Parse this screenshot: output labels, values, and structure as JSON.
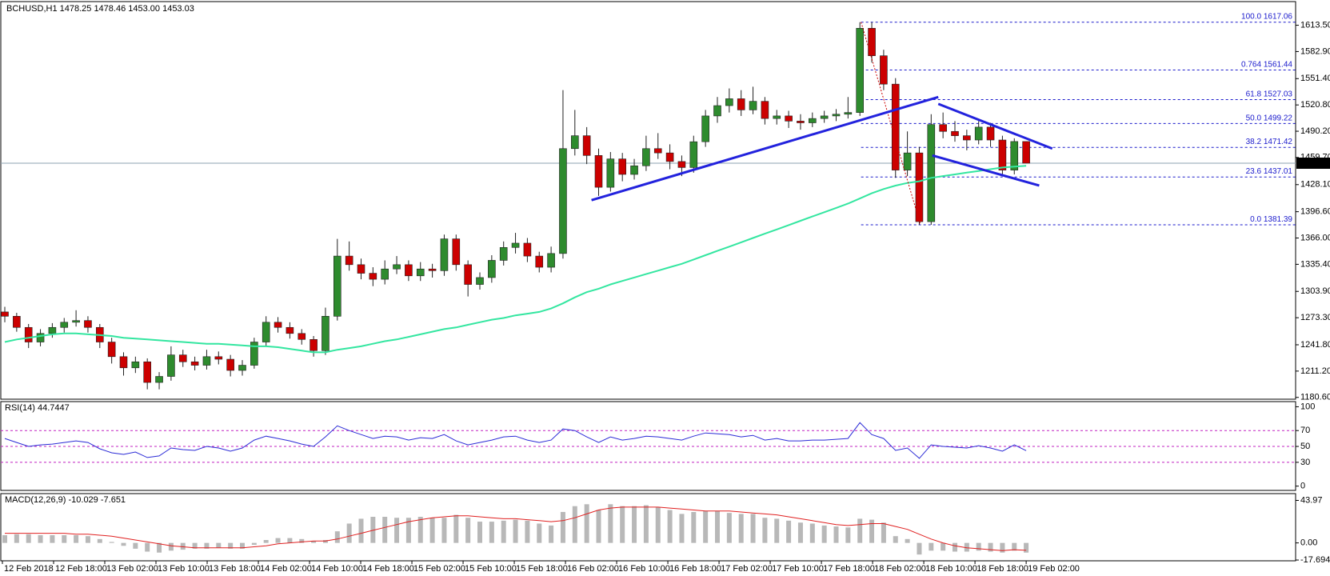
{
  "chart_data": {
    "type": "candlestick",
    "header": "BCHUSD,H1  1478.25 1478.46 1453.00 1453.03",
    "bull_color": "#2e8b2e",
    "bear_color": "#cc0000",
    "ma_color": "#33e6a0",
    "trend_color": "#2222dd",
    "fib_color": "#1a1acc",
    "ylim": [
      1178.5,
      1641
    ],
    "yticks": [
      {
        "value": 1613.5,
        "label": "1613.50"
      },
      {
        "value": 1582.9,
        "label": "1582.90"
      },
      {
        "value": 1551.4,
        "label": "1551.40"
      },
      {
        "value": 1520.8,
        "label": "1520.80"
      },
      {
        "value": 1490.2,
        "label": "1490.20"
      },
      {
        "value": 1459.7,
        "label": "1459.70"
      },
      {
        "value": 1428.1,
        "label": "1428.10"
      },
      {
        "value": 1396.6,
        "label": "1396.60"
      },
      {
        "value": 1366,
        "label": "1366.00"
      },
      {
        "value": 1335.4,
        "label": "1335.40"
      },
      {
        "value": 1303.9,
        "label": "1303.90"
      },
      {
        "value": 1273.3,
        "label": "1273.30"
      },
      {
        "value": 1241.8,
        "label": "1241.80"
      },
      {
        "value": 1211.2,
        "label": "1211.20"
      },
      {
        "value": 1180.6,
        "label": "1180.60"
      }
    ],
    "time_labels": [
      "12 Feb 2018",
      "12 Feb 18:00",
      "13 Feb 02:00",
      "13 Feb 10:00",
      "13 Feb 18:00",
      "14 Feb 02:00",
      "14 Feb 10:00",
      "14 Feb 18:00",
      "15 Feb 02:00",
      "15 Feb 10:00",
      "15 Feb 18:00",
      "16 Feb 02:00",
      "16 Feb 10:00",
      "16 Feb 18:00",
      "17 Feb 02:00",
      "17 Feb 10:00",
      "17 Feb 18:00",
      "18 Feb 02:00",
      "18 Feb 10:00",
      "18 Feb 18:00",
      "19 Feb 02:00"
    ],
    "candles": [
      [
        1280,
        1286,
        1268,
        1275
      ],
      [
        1275,
        1279,
        1257,
        1262
      ],
      [
        1262,
        1266,
        1238,
        1245
      ],
      [
        1245,
        1260,
        1240,
        1255
      ],
      [
        1255,
        1267,
        1250,
        1262
      ],
      [
        1262,
        1273,
        1256,
        1268
      ],
      [
        1268,
        1282,
        1263,
        1270
      ],
      [
        1270,
        1275,
        1256,
        1262
      ],
      [
        1262,
        1266,
        1238,
        1245
      ],
      [
        1245,
        1250,
        1220,
        1228
      ],
      [
        1228,
        1233,
        1206,
        1215
      ],
      [
        1215,
        1228,
        1209,
        1222
      ],
      [
        1222,
        1226,
        1190,
        1198
      ],
      [
        1198,
        1210,
        1190,
        1205
      ],
      [
        1205,
        1240,
        1200,
        1230
      ],
      [
        1230,
        1236,
        1216,
        1222
      ],
      [
        1222,
        1228,
        1212,
        1218
      ],
      [
        1218,
        1236,
        1213,
        1228
      ],
      [
        1228,
        1234,
        1219,
        1225
      ],
      [
        1225,
        1230,
        1205,
        1212
      ],
      [
        1212,
        1224,
        1206,
        1218
      ],
      [
        1218,
        1250,
        1214,
        1245
      ],
      [
        1245,
        1275,
        1240,
        1268
      ],
      [
        1268,
        1274,
        1256,
        1262
      ],
      [
        1262,
        1268,
        1249,
        1255
      ],
      [
        1255,
        1260,
        1242,
        1248
      ],
      [
        1248,
        1252,
        1228,
        1235
      ],
      [
        1235,
        1285,
        1230,
        1275
      ],
      [
        1275,
        1365,
        1270,
        1345
      ],
      [
        1345,
        1362,
        1328,
        1335
      ],
      [
        1335,
        1342,
        1318,
        1325
      ],
      [
        1325,
        1332,
        1310,
        1318
      ],
      [
        1318,
        1340,
        1312,
        1330
      ],
      [
        1330,
        1345,
        1324,
        1335
      ],
      [
        1335,
        1340,
        1316,
        1322
      ],
      [
        1322,
        1338,
        1316,
        1330
      ],
      [
        1330,
        1336,
        1320,
        1328
      ],
      [
        1328,
        1370,
        1322,
        1365
      ],
      [
        1365,
        1370,
        1328,
        1335
      ],
      [
        1335,
        1340,
        1298,
        1312
      ],
      [
        1312,
        1326,
        1306,
        1320
      ],
      [
        1320,
        1346,
        1314,
        1340
      ],
      [
        1340,
        1362,
        1334,
        1355
      ],
      [
        1355,
        1372,
        1348,
        1360
      ],
      [
        1360,
        1366,
        1338,
        1345
      ],
      [
        1345,
        1350,
        1326,
        1332
      ],
      [
        1332,
        1356,
        1326,
        1348
      ],
      [
        1348,
        1538,
        1342,
        1470
      ],
      [
        1470,
        1515,
        1462,
        1485
      ],
      [
        1485,
        1495,
        1452,
        1462
      ],
      [
        1462,
        1470,
        1415,
        1425
      ],
      [
        1425,
        1466,
        1420,
        1458
      ],
      [
        1458,
        1465,
        1432,
        1440
      ],
      [
        1440,
        1458,
        1434,
        1450
      ],
      [
        1450,
        1485,
        1444,
        1470
      ],
      [
        1470,
        1488,
        1458,
        1465
      ],
      [
        1465,
        1475,
        1446,
        1455
      ],
      [
        1455,
        1462,
        1438,
        1448
      ],
      [
        1448,
        1485,
        1442,
        1478
      ],
      [
        1478,
        1515,
        1472,
        1508
      ],
      [
        1508,
        1530,
        1500,
        1520
      ],
      [
        1520,
        1540,
        1512,
        1528
      ],
      [
        1528,
        1538,
        1508,
        1515
      ],
      [
        1515,
        1542,
        1510,
        1525
      ],
      [
        1525,
        1530,
        1498,
        1505
      ],
      [
        1505,
        1515,
        1498,
        1508
      ],
      [
        1508,
        1514,
        1494,
        1502
      ],
      [
        1502,
        1510,
        1492,
        1500
      ],
      [
        1500,
        1512,
        1495,
        1505
      ],
      [
        1505,
        1514,
        1500,
        1508
      ],
      [
        1508,
        1516,
        1502,
        1510
      ],
      [
        1510,
        1530,
        1505,
        1512
      ],
      [
        1512,
        1617.06,
        1508,
        1610
      ],
      [
        1610,
        1617,
        1570,
        1578
      ],
      [
        1578,
        1585,
        1538,
        1545
      ],
      [
        1545,
        1552,
        1436,
        1445
      ],
      [
        1445,
        1490,
        1438,
        1465
      ],
      [
        1465,
        1472,
        1381.39,
        1385
      ],
      [
        1385,
        1510,
        1381.39,
        1498
      ],
      [
        1498,
        1512,
        1482,
        1490
      ],
      [
        1490,
        1502,
        1478,
        1485
      ],
      [
        1485,
        1492,
        1468,
        1480
      ],
      [
        1480,
        1502,
        1475,
        1495
      ],
      [
        1495,
        1500,
        1472,
        1480
      ],
      [
        1480,
        1485,
        1440,
        1445
      ],
      [
        1445,
        1482,
        1440,
        1478.25
      ],
      [
        1478.25,
        1478.46,
        1453,
        1453.03
      ]
    ],
    "ma": [
      1245,
      1248,
      1250,
      1252,
      1254,
      1255,
      1255,
      1254,
      1253,
      1252,
      1250,
      1249,
      1248,
      1247,
      1246,
      1245,
      1244,
      1243,
      1243,
      1242,
      1241,
      1240,
      1240,
      1239,
      1237,
      1235,
      1233,
      1233,
      1236,
      1238,
      1240,
      1243,
      1246,
      1248,
      1251,
      1254,
      1257,
      1260,
      1262,
      1265,
      1268,
      1271,
      1273,
      1276,
      1278,
      1280,
      1284,
      1290,
      1297,
      1303,
      1307,
      1312,
      1316,
      1320,
      1324,
      1328,
      1332,
      1336,
      1341,
      1346,
      1351,
      1356,
      1361,
      1366,
      1371,
      1376,
      1381,
      1386,
      1391,
      1396,
      1401,
      1406,
      1412,
      1418,
      1423,
      1427,
      1430,
      1432,
      1436,
      1438,
      1440,
      1442,
      1444,
      1446,
      1448,
      1449,
      1450
    ],
    "fib": {
      "start": 72.1,
      "levels": [
        {
          "level": "100.0",
          "price": 1617.06
        },
        {
          "level": "0.764",
          "price": 1561.44
        },
        {
          "level": "61.8",
          "price": 1527.03
        },
        {
          "level": "50.0",
          "price": 1499.22
        },
        {
          "level": "38.2",
          "price": 1471.42
        },
        {
          "level": "23.6",
          "price": 1437.01
        },
        {
          "level": "0.0",
          "price": 1381.39
        }
      ]
    },
    "fib_swing": {
      "x": [
        72.1,
        77.1
      ],
      "y": [
        1617.06,
        1381.39
      ]
    },
    "trendlines": [
      {
        "x": [
          49.4,
          78.6
        ],
        "y": [
          1410,
          1530
        ]
      },
      {
        "x": [
          78.6,
          88.2
        ],
        "y": [
          1522,
          1470
        ]
      },
      {
        "x": [
          78.1,
          87.1
        ],
        "y": [
          1462,
          1427
        ]
      }
    ],
    "rsi": {
      "name": "RSI(14)",
      "color": "#2b2bd6",
      "level_color": "#c020c0",
      "ylim": [
        -5.4,
        106.5
      ],
      "yticks": [
        100,
        70,
        50,
        30,
        0
      ],
      "levels": [
        70,
        50,
        30
      ],
      "values": [
        60,
        55,
        50,
        52,
        53,
        55,
        57,
        55,
        47,
        42,
        40,
        43,
        36,
        38,
        48,
        46,
        45,
        50,
        48,
        44,
        48,
        58,
        63,
        60,
        57,
        53,
        50,
        62,
        76,
        70,
        65,
        60,
        63,
        62,
        58,
        61,
        60,
        65,
        57,
        52,
        55,
        58,
        62,
        63,
        58,
        55,
        58,
        72,
        70,
        62,
        55,
        62,
        58,
        60,
        63,
        62,
        60,
        58,
        63,
        67,
        66,
        65,
        62,
        64,
        58,
        60,
        57,
        57,
        58,
        58,
        59,
        60,
        80,
        65,
        60,
        45,
        48,
        35,
        52,
        50,
        49,
        48,
        51,
        48,
        44,
        52,
        44.7447
      ]
    },
    "macd": {
      "name": "MACD(12,26,9)",
      "bar_color": "#b8b8b8",
      "signal_color": "#e02020",
      "ylim": [
        -18.5,
        51
      ],
      "yticks": [
        43.97,
        {
          "value": 0,
          "label": "0.00"
        },
        -17.694
      ],
      "values": [
        8,
        9,
        9,
        8,
        8,
        8,
        8,
        7,
        4,
        1,
        -3,
        -6,
        -9,
        -10,
        -8,
        -7,
        -6,
        -6,
        -5,
        -6,
        -6,
        -2,
        3,
        5,
        5,
        4,
        2,
        3,
        12,
        20,
        25,
        27,
        27,
        26,
        26,
        27,
        26,
        26,
        29,
        26,
        22,
        22,
        23,
        24,
        23,
        20,
        18,
        32,
        38,
        40,
        34,
        40,
        38,
        38,
        39,
        37,
        34,
        30,
        32,
        33,
        33,
        31,
        30,
        30,
        26,
        25,
        23,
        21,
        20,
        18,
        17,
        16,
        25,
        24,
        21,
        7,
        4,
        -12,
        -8,
        -8,
        -9,
        -9,
        -8,
        -9,
        -10,
        -8,
        -10.029
      ],
      "signal": [
        10,
        10,
        10,
        10,
        10,
        10,
        9,
        9,
        8,
        7,
        5,
        3,
        1,
        -1,
        -3,
        -4,
        -5,
        -5,
        -5,
        -5,
        -5,
        -4,
        -3,
        -1,
        0,
        1,
        2,
        2,
        4,
        7,
        10,
        13,
        16,
        19,
        22,
        24,
        26,
        27,
        28,
        28,
        27,
        26,
        25,
        25,
        24,
        23,
        22,
        23,
        26,
        30,
        34,
        36,
        37,
        37,
        37,
        37,
        36,
        35,
        34,
        33,
        33,
        33,
        32,
        31,
        30,
        29,
        27,
        25,
        23,
        21,
        19,
        18,
        19,
        20,
        20,
        17,
        14,
        9,
        4,
        0,
        -3,
        -5,
        -6,
        -7,
        -8,
        -7,
        -7.651
      ]
    }
  }
}
